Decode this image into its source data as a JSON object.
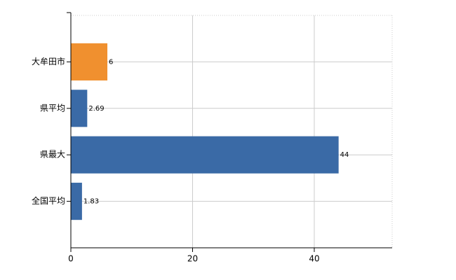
{
  "chart_data": {
    "type": "bar",
    "orientation": "horizontal",
    "categories": [
      "大牟田市",
      "県平均",
      "県最大",
      "全国平均"
    ],
    "values": [
      6,
      2.69,
      44,
      1.83
    ],
    "colors": [
      "#f0902f",
      "#3a6aa6",
      "#3a6aa6",
      "#3a6aa6"
    ],
    "xlim": [
      0,
      52.8
    ],
    "xticks": [
      0,
      20,
      40
    ],
    "grid": true
  }
}
